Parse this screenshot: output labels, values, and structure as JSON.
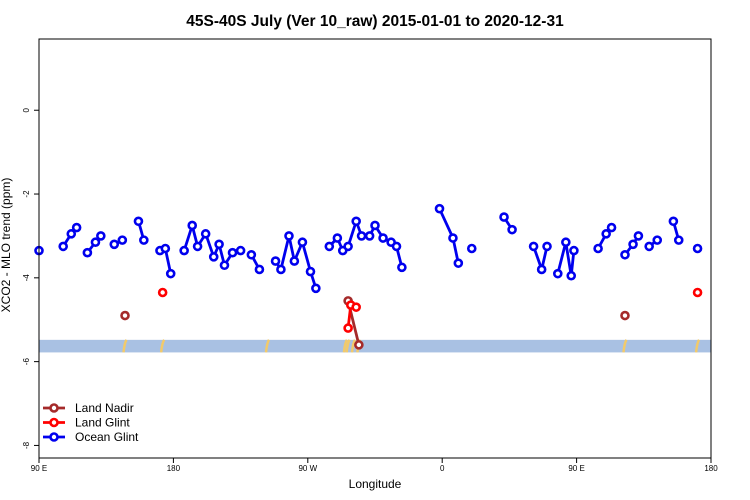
{
  "chart_data": {
    "type": "line",
    "title": "45S-40S July (Ver 10_raw)   2015-01-01 to 2020-12-31",
    "xlabel": "Longitude",
    "ylabel": "XCO2 - MLO trend (ppm)",
    "xlim": [
      -270,
      -20
    ],
    "ylim": [
      -8.3,
      1.7
    ],
    "x_ticks": [
      {
        "value": -270,
        "label": "90 E"
      },
      {
        "value": -220,
        "label": "180"
      },
      {
        "value": -170,
        "label": "90 W"
      },
      {
        "value": -120,
        "label": "0"
      },
      {
        "value": -70,
        "label": "90 E"
      },
      {
        "value": -20,
        "label": "180"
      }
    ],
    "y_ticks": [
      {
        "value": 0,
        "label": "0"
      },
      {
        "value": -2,
        "label": "-2"
      },
      {
        "value": -4,
        "label": "-4"
      },
      {
        "value": -6,
        "label": "-6"
      },
      {
        "value": -8,
        "label": "-8"
      }
    ],
    "grid": false,
    "legend_position": "bottom-left",
    "series": [
      {
        "name": "Land Nadir",
        "color": "#A52A2A",
        "segments": [
          [
            [
              -238,
              -4.9
            ]
          ],
          [
            [
              -155,
              -4.55
            ],
            [
              -151,
              -5.6
            ]
          ],
          [
            [
              -52,
              -4.9
            ]
          ]
        ]
      },
      {
        "name": "Land Glint",
        "color": "#FF0000",
        "segments": [
          [
            [
              -224,
              -4.35
            ]
          ],
          [
            [
              -155,
              -5.2
            ],
            [
              -154,
              -4.65
            ],
            [
              -152,
              -4.7
            ]
          ],
          [
            [
              -25,
              -4.35
            ]
          ]
        ]
      },
      {
        "name": "Ocean Glint",
        "color": "#0000EE",
        "segments": [
          [
            [
              -270,
              -3.35
            ]
          ],
          [
            [
              -261,
              -3.25
            ],
            [
              -258,
              -2.95
            ],
            [
              -256,
              -2.8
            ]
          ],
          [
            [
              -252,
              -3.4
            ],
            [
              -249,
              -3.15
            ],
            [
              -247,
              -3.0
            ]
          ],
          [
            [
              -242,
              -3.2
            ],
            [
              -239,
              -3.1
            ]
          ],
          [
            [
              -233,
              -2.65
            ],
            [
              -231,
              -3.1
            ]
          ],
          [
            [
              -225,
              -3.35
            ]
          ],
          [
            [
              -223,
              -3.3
            ],
            [
              -221,
              -3.9
            ]
          ],
          [
            [
              -216,
              -3.35
            ],
            [
              -213,
              -2.75
            ],
            [
              -211,
              -3.25
            ],
            [
              -208,
              -2.95
            ],
            [
              -205,
              -3.5
            ],
            [
              -203,
              -3.2
            ],
            [
              -201,
              -3.7
            ],
            [
              -198,
              -3.4
            ],
            [
              -195,
              -3.35
            ]
          ],
          [
            [
              -191,
              -3.45
            ],
            [
              -188,
              -3.8
            ]
          ],
          [
            [
              -182,
              -3.6
            ],
            [
              -180,
              -3.8
            ],
            [
              -177,
              -3.0
            ],
            [
              -175,
              -3.6
            ],
            [
              -172,
              -3.15
            ],
            [
              -169,
              -3.85
            ],
            [
              -167,
              -4.25
            ]
          ],
          [
            [
              -162,
              -3.25
            ],
            [
              -159,
              -3.05
            ],
            [
              -157,
              -3.35
            ],
            [
              -155,
              -3.25
            ],
            [
              -152,
              -2.65
            ],
            [
              -150,
              -3.0
            ],
            [
              -147,
              -3.0
            ],
            [
              -145,
              -2.75
            ],
            [
              -142,
              -3.05
            ],
            [
              -139,
              -3.15
            ],
            [
              -137,
              -3.25
            ],
            [
              -135,
              -3.75
            ]
          ],
          [
            [
              -121,
              -2.35
            ],
            [
              -116,
              -3.05
            ],
            [
              -114,
              -3.65
            ]
          ],
          [
            [
              -109,
              -3.3
            ]
          ],
          [
            [
              -97,
              -2.55
            ],
            [
              -94,
              -2.85
            ]
          ],
          [
            [
              -86,
              -3.25
            ],
            [
              -83,
              -3.8
            ],
            [
              -81,
              -3.25
            ]
          ],
          [
            [
              -77,
              -3.9
            ],
            [
              -74,
              -3.15
            ],
            [
              -72,
              -3.95
            ],
            [
              -71,
              -3.35
            ]
          ],
          [
            [
              -62,
              -3.3
            ],
            [
              -59,
              -2.95
            ],
            [
              -57,
              -2.8
            ]
          ],
          [
            [
              -52,
              -3.45
            ],
            [
              -49,
              -3.2
            ],
            [
              -47,
              -3.0
            ]
          ],
          [
            [
              -43,
              -3.25
            ],
            [
              -40,
              -3.1
            ]
          ],
          [
            [
              -34,
              -2.65
            ],
            [
              -32,
              -3.1
            ]
          ],
          [
            [
              -25,
              -3.3
            ]
          ]
        ]
      }
    ],
    "band": {
      "y_from": -5.78,
      "y_to": -5.48,
      "color": "#A9C1E3",
      "land_color": "#F2CA6B",
      "land_marks": [
        -238,
        -224,
        -185,
        -156,
        -155,
        -153,
        -151,
        -52,
        -25
      ]
    }
  }
}
